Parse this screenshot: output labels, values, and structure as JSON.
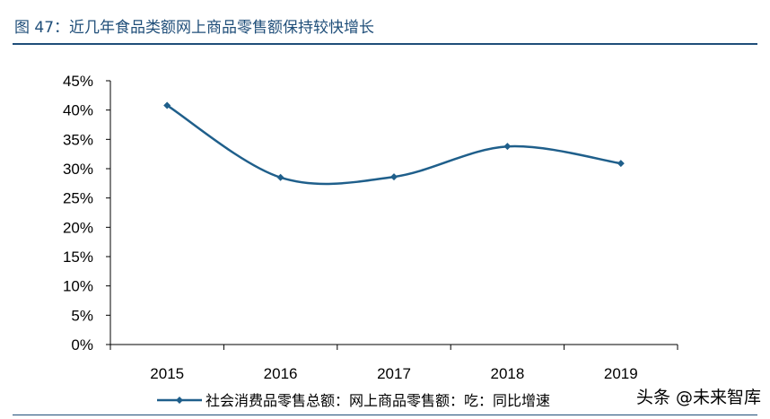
{
  "title": "图 47：近几年食品类额网上商品零售额保持较快增长",
  "watermark": "头条 @未来智库",
  "colors": {
    "title": "#1f4e79",
    "series": "#1f5f8b",
    "axis": "#000000"
  },
  "chart_data": {
    "type": "line",
    "title": "",
    "xlabel": "",
    "ylabel": "",
    "categories": [
      "2015",
      "2016",
      "2017",
      "2018",
      "2019"
    ],
    "series": [
      {
        "name": "社会消费品零售总额：网上商品零售额：吃：同比增速",
        "values": [
          40.8,
          28.5,
          28.6,
          33.8,
          30.9
        ],
        "marker": "diamond",
        "smooth": true
      }
    ],
    "ylim": [
      0,
      45
    ],
    "yticks": [
      "0%",
      "5%",
      "10%",
      "15%",
      "20%",
      "25%",
      "30%",
      "35%",
      "40%",
      "45%"
    ],
    "grid": false,
    "legend_position": "bottom"
  }
}
